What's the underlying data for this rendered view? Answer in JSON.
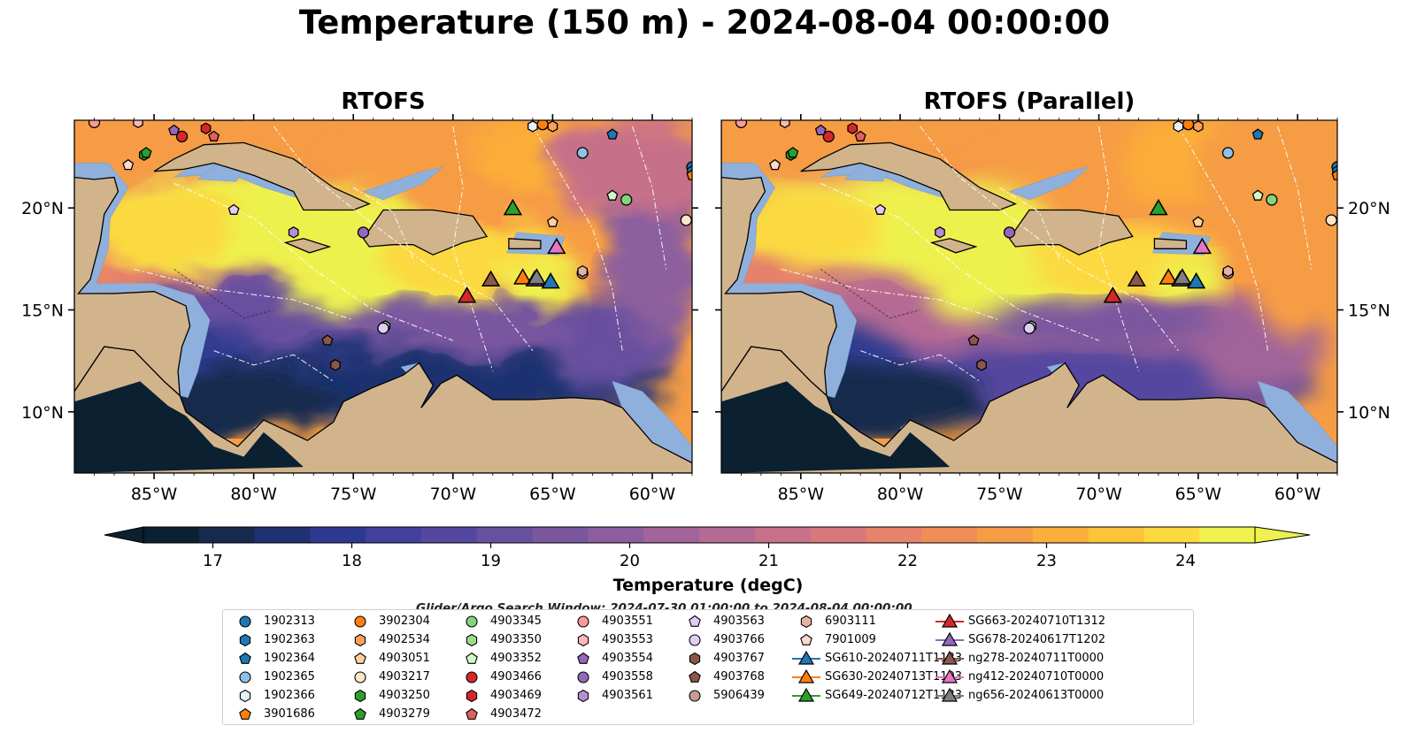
{
  "title": "Temperature (150 m) - 2024-08-04 00:00:00",
  "panels": [
    {
      "title": "RTOFS"
    },
    {
      "title": "RTOFS (Parallel)"
    }
  ],
  "colorbar": {
    "label": "Temperature (degC)",
    "ticks": [
      "17",
      "18",
      "19",
      "20",
      "21",
      "22",
      "23",
      "24"
    ],
    "vmin": 17,
    "vmax": 24.5,
    "step": 0.5,
    "extend": "both",
    "colors": [
      "#0b2031",
      "#152a4c",
      "#1f3170",
      "#2e3a8f",
      "#41419b",
      "#54479f",
      "#67509f",
      "#7a579f",
      "#8c5e9d",
      "#a0649a",
      "#b46a94",
      "#c7708a",
      "#d8787c",
      "#e7826b",
      "#f08d58",
      "#f69c45",
      "#fbae39",
      "#fdc33a",
      "#fcd93f",
      "#eef14e"
    ]
  },
  "map": {
    "lat_ticks": [
      "20°N",
      "15°N",
      "10°N"
    ],
    "lon_ticks": [
      "85°W",
      "80°W",
      "75°W",
      "70°W",
      "65°W",
      "60°W"
    ],
    "extent": {
      "lon_min": -89,
      "lon_max": -58,
      "lat_min": 7,
      "lat_max": 24.3
    },
    "land_color": "#d2b48c",
    "shelf_color": "#8fb0dc"
  },
  "search_window": "Glider/Argo Search Window: 2024-07-30 01:00:00 to 2024-08-04 00:00:00",
  "chart_data": {
    "type": "heatmap",
    "variable": "Temperature (150 m)",
    "units": "degC",
    "datetime": "2024-08-04 00:00:00",
    "colorbar_range": [
      17,
      24.5
    ],
    "argo_floats": [
      {
        "id": "1902313",
        "marker": "circle",
        "color": "#1f77b4",
        "lon": -58.0,
        "lat": 22.0
      },
      {
        "id": "1902363",
        "marker": "hexagon",
        "color": "#1f77b4",
        "lon": -58.0,
        "lat": 21.8
      },
      {
        "id": "1902364",
        "marker": "pentagon",
        "color": "#1f77b4",
        "lon": -62.0,
        "lat": 23.6
      },
      {
        "id": "1902365",
        "marker": "circle",
        "color": "#8ec1e8",
        "lon": -63.5,
        "lat": 22.7
      },
      {
        "id": "1902366",
        "marker": "hexagon",
        "color": "#e6f1fb",
        "lon": -66.0,
        "lat": 24.0
      },
      {
        "id": "3901686",
        "marker": "pentagon",
        "color": "#ff7f0e",
        "lon": -58.0,
        "lat": 21.6
      },
      {
        "id": "3902304",
        "marker": "circle",
        "color": "#ff7f0e",
        "lon": -65.5,
        "lat": 24.1
      },
      {
        "id": "4902534",
        "marker": "hexagon",
        "color": "#ffa05a",
        "lon": -65.0,
        "lat": 24.0
      },
      {
        "id": "4903051",
        "marker": "pentagon",
        "color": "#ffd09a",
        "lon": -65.0,
        "lat": 19.3
      },
      {
        "id": "4903217",
        "marker": "circle",
        "color": "#ffe4c8",
        "lon": -58.3,
        "lat": 19.4
      },
      {
        "id": "4903250",
        "marker": "hexagon",
        "color": "#2ca02c",
        "lon": -85.5,
        "lat": 22.6
      },
      {
        "id": "4903279",
        "marker": "pentagon",
        "color": "#2ca02c",
        "lon": -85.4,
        "lat": 22.7
      },
      {
        "id": "4903345",
        "marker": "circle",
        "color": "#7fd67f",
        "lon": -61.3,
        "lat": 20.4
      },
      {
        "id": "4903350",
        "marker": "hexagon",
        "color": "#98df8a",
        "lon": -73.4,
        "lat": 14.2
      },
      {
        "id": "4903352",
        "marker": "pentagon",
        "color": "#d4f7c8",
        "lon": -62.0,
        "lat": 20.6
      },
      {
        "id": "4903466",
        "marker": "circle",
        "color": "#d62728",
        "lon": -83.6,
        "lat": 23.5
      },
      {
        "id": "4903469",
        "marker": "hexagon",
        "color": "#d62728",
        "lon": -82.4,
        "lat": 23.9
      },
      {
        "id": "4903472",
        "marker": "pentagon",
        "color": "#e06060",
        "lon": -82.0,
        "lat": 23.5
      },
      {
        "id": "4903551",
        "marker": "circle",
        "color": "#ff9896",
        "lon": -88.0,
        "lat": 24.2
      },
      {
        "id": "4903553",
        "marker": "hexagon",
        "color": "#ffb8b8",
        "lon": -85.8,
        "lat": 24.2
      },
      {
        "id": "4903554",
        "marker": "pentagon",
        "color": "#9467bd",
        "lon": -84.0,
        "lat": 23.8
      },
      {
        "id": "4903558",
        "marker": "circle",
        "color": "#9467bd",
        "lon": -74.5,
        "lat": 18.8
      },
      {
        "id": "4903561",
        "marker": "hexagon",
        "color": "#b58fd6",
        "lon": -78.0,
        "lat": 18.8
      },
      {
        "id": "4903563",
        "marker": "pentagon",
        "color": "#e3cbf5",
        "lon": -81.0,
        "lat": 19.9
      },
      {
        "id": "4903766",
        "marker": "circle",
        "color": "#e0cdf5",
        "lon": -73.5,
        "lat": 14.1
      },
      {
        "id": "4903767",
        "marker": "hexagon",
        "color": "#8c564b",
        "lon": -75.9,
        "lat": 12.3
      },
      {
        "id": "4903768",
        "marker": "pentagon",
        "color": "#8c564b",
        "lon": -76.3,
        "lat": 13.5
      },
      {
        "id": "5906439",
        "marker": "circle",
        "color": "#c49c94",
        "lon": -63.5,
        "lat": 16.8
      },
      {
        "id": "6903111",
        "marker": "hexagon",
        "color": "#e8b0a4",
        "lon": -63.5,
        "lat": 16.9
      },
      {
        "id": "7901009",
        "marker": "pentagon",
        "color": "#ffd6cc",
        "lon": -86.3,
        "lat": 22.1
      }
    ],
    "gliders": [
      {
        "id": "SG610-20240711T1133",
        "color": "#1f77b4",
        "lon": -65.1,
        "lat": 16.4
      },
      {
        "id": "SG630-20240713T1103",
        "color": "#ff7f0e",
        "lon": -66.5,
        "lat": 16.6
      },
      {
        "id": "SG649-20240712T1133",
        "color": "#2ca02c",
        "lon": -67.0,
        "lat": 20.0
      },
      {
        "id": "SG663-20240710T1312",
        "color": "#d62728",
        "lon": -69.3,
        "lat": 15.7
      },
      {
        "id": "SG678-20240617T1202",
        "color": "#9467bd",
        "lon": -65.9,
        "lat": 16.5
      },
      {
        "id": "ng278-20240711T0000",
        "color": "#8c564b",
        "lon": -68.1,
        "lat": 16.5
      },
      {
        "id": "ng412-20240710T0000",
        "color": "#e377c2",
        "lon": -64.8,
        "lat": 18.1
      },
      {
        "id": "ng656-20240613T0000",
        "color": "#7f7f7f",
        "lon": -65.8,
        "lat": 16.6
      }
    ]
  }
}
